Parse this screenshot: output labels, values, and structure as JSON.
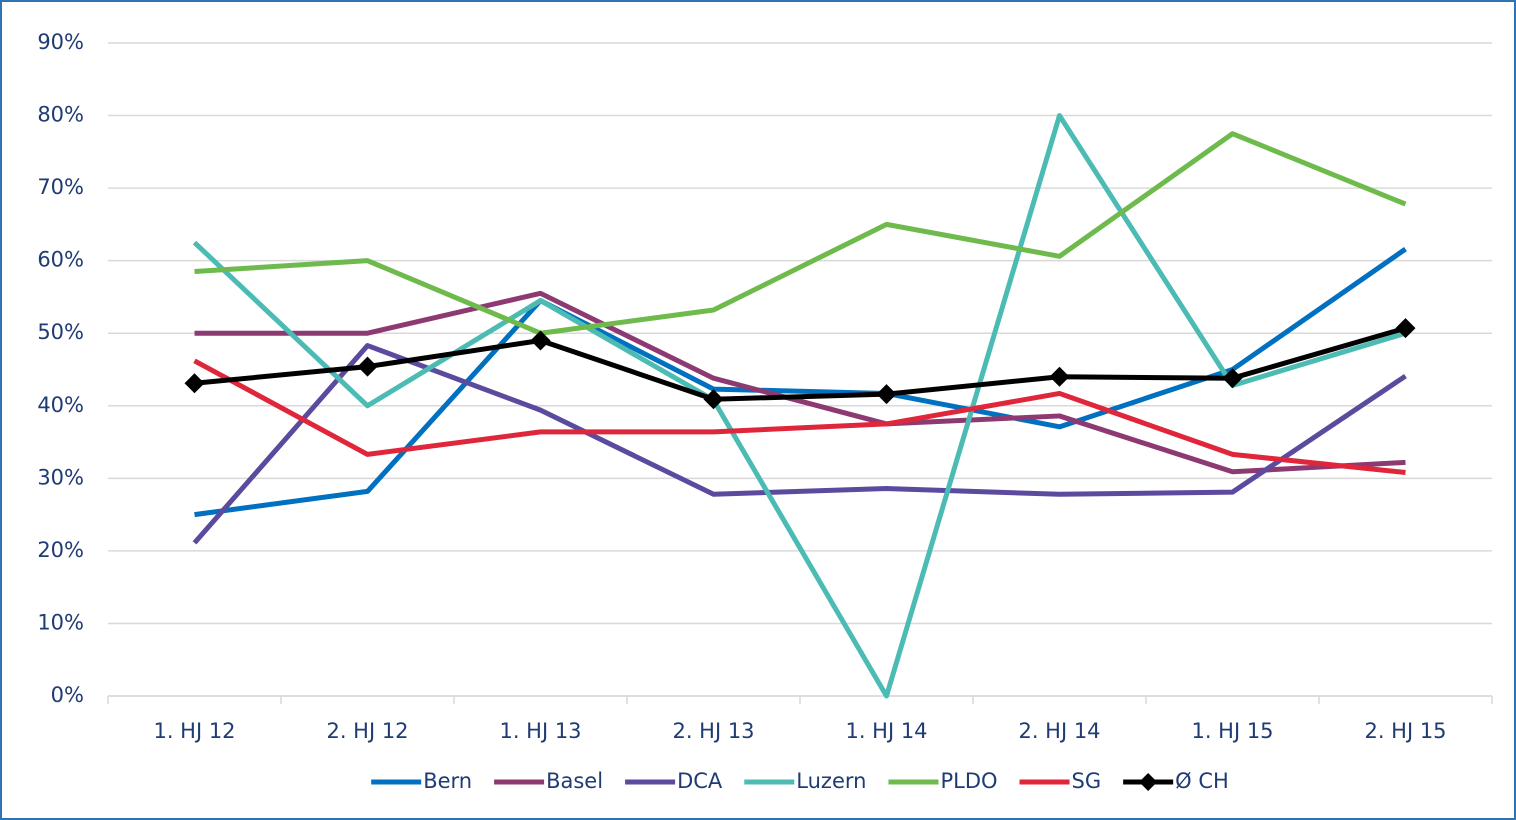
{
  "chart_data": {
    "type": "line",
    "categories": [
      "1. HJ 12",
      "2. HJ 12",
      "1. HJ 13",
      "2. HJ 13",
      "1. HJ 14",
      "2. HJ 14",
      "1. HJ 15",
      "2. HJ 15"
    ],
    "series": [
      {
        "name": "Bern",
        "color": "#0070c0",
        "values": [
          25,
          28.2,
          54.5,
          42.3,
          41.7,
          37.1,
          45,
          61.6
        ]
      },
      {
        "name": "Basel",
        "color": "#8e3a72",
        "values": [
          50,
          50,
          55.5,
          43.8,
          37.5,
          38.6,
          30.9,
          32.2
        ]
      },
      {
        "name": "DCA",
        "color": "#5b4a9e",
        "values": [
          21.1,
          48.3,
          39.4,
          27.8,
          28.6,
          27.8,
          28.1,
          44.1
        ]
      },
      {
        "name": "Luzern",
        "color": "#4bbbb4",
        "values": [
          62.5,
          40,
          54.5,
          40.8,
          0,
          80,
          42.8,
          50
        ]
      },
      {
        "name": "PLDO",
        "color": "#6fba4c",
        "values": [
          58.5,
          60,
          50,
          53.2,
          65,
          60.6,
          77.5,
          67.8
        ]
      },
      {
        "name": "SG",
        "color": "#e0263a",
        "values": [
          46.2,
          33.3,
          36.4,
          36.4,
          37.5,
          41.7,
          33.3,
          30.8
        ]
      },
      {
        "name": "Ø CH",
        "color": "#000000",
        "marker": "diamond",
        "values": [
          43.1,
          45.4,
          49,
          40.9,
          41.6,
          44,
          43.8,
          50.7
        ]
      }
    ],
    "ylim": [
      0,
      90
    ],
    "yticks": [
      {
        "value": 0,
        "label": "0%"
      },
      {
        "value": 10,
        "label": "10%"
      },
      {
        "value": 20,
        "label": "20%"
      },
      {
        "value": 30,
        "label": "30%"
      },
      {
        "value": 40,
        "label": "40%"
      },
      {
        "value": 50,
        "label": "50%"
      },
      {
        "value": 60,
        "label": "60%"
      },
      {
        "value": 70,
        "label": "70%"
      },
      {
        "value": 80,
        "label": "80%"
      },
      {
        "value": 90,
        "label": "90%"
      }
    ],
    "grid": true,
    "legend": "bottom"
  }
}
